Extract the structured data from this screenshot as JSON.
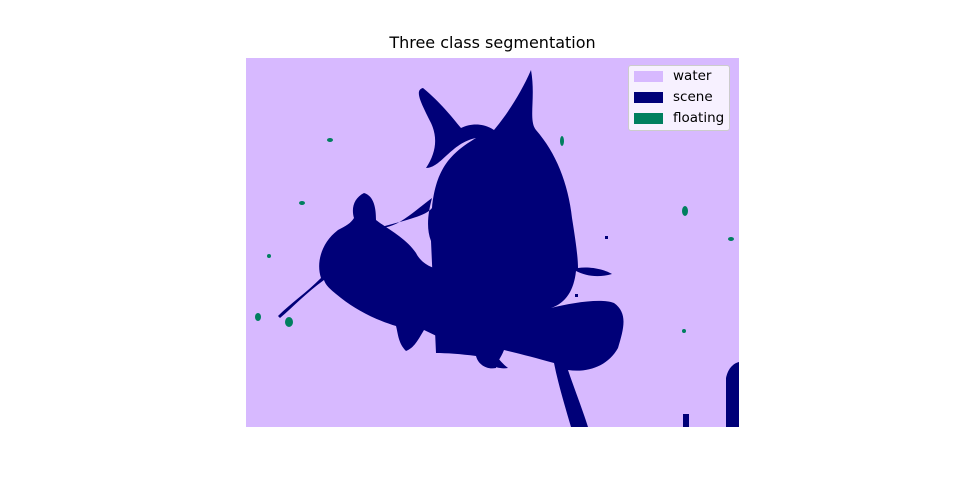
{
  "figure": {
    "title": "Three class segmentation"
  },
  "legend": {
    "items": [
      {
        "label": "water",
        "color": "#d7b9ff"
      },
      {
        "label": "scene",
        "color": "#000078"
      },
      {
        "label": "floating",
        "color": "#007f5f"
      }
    ]
  },
  "colors": {
    "water": "#d7b9ff",
    "scene": "#000078",
    "floating": "#007f5f"
  }
}
